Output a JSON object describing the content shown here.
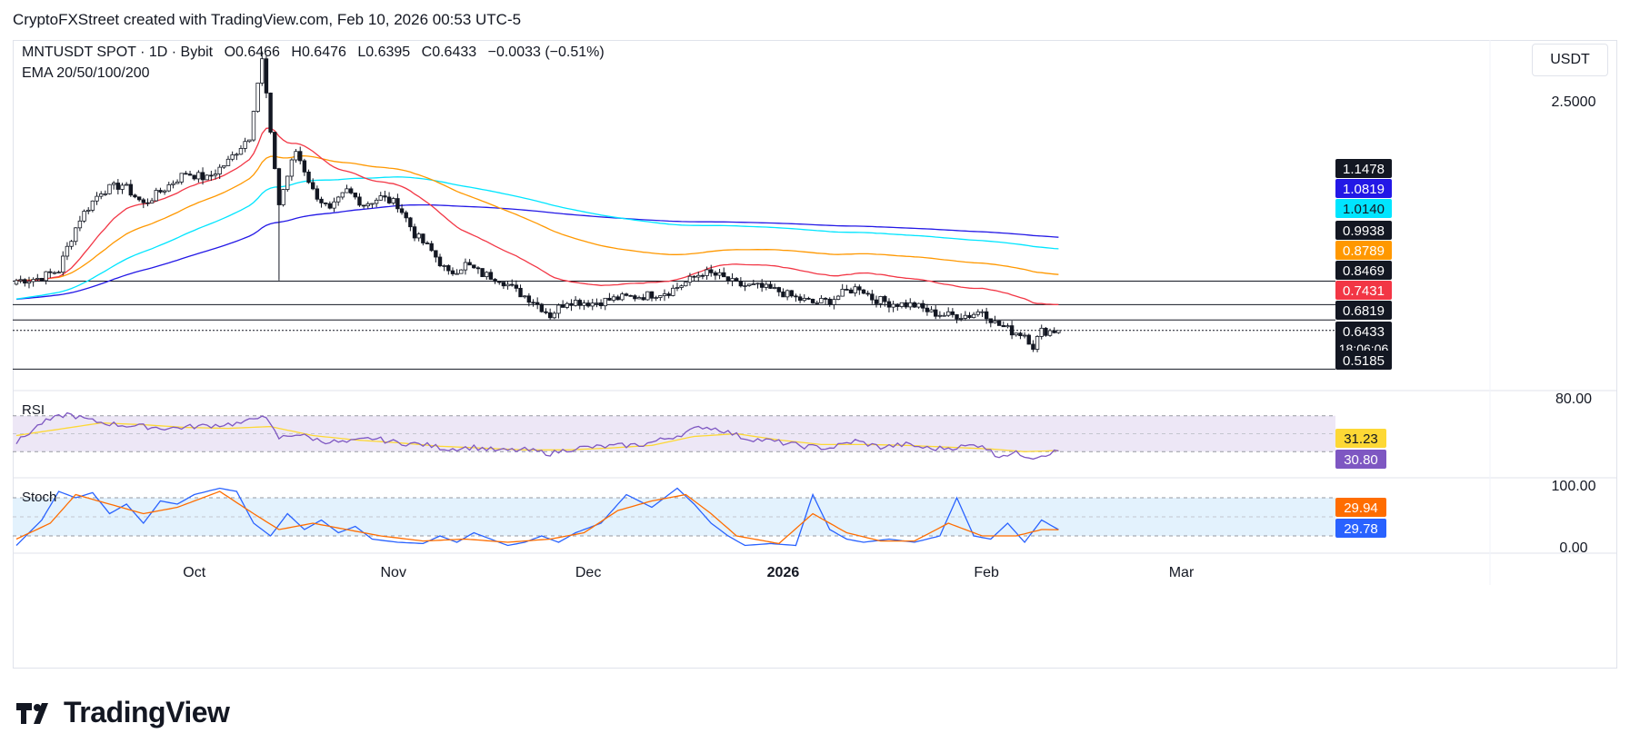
{
  "header": {
    "credit": "CryptoFXStreet created with TradingView.com, Feb 10, 2026 00:53 UTC-5"
  },
  "currency": "USDT",
  "footer": {
    "brand": "TradingView"
  },
  "chart_data": {
    "type": "candlestick",
    "symbol_line": {
      "symbol": "MNTUSDT SPOT · 1D · Bybit",
      "open": "O0.6466",
      "high": "H0.6476",
      "low": "L0.6395",
      "close": "C0.6433",
      "change": "−0.0033 (−0.51%)"
    },
    "indicator_label": "EMA 20/50/100/200",
    "price_axis": {
      "scale": "log",
      "range": [
        0.46,
        3.25
      ],
      "ticks": [
        "2.5000"
      ]
    },
    "time_axis": {
      "labels": [
        "Oct",
        "Nov",
        "Dec",
        "2026",
        "Feb",
        "Mar"
      ]
    },
    "horizontal_levels": [
      0.8469,
      0.7431,
      0.6819,
      0.6433,
      0.5185
    ],
    "price_badges": [
      {
        "value": "1.1478",
        "color": "#131722"
      },
      {
        "value": "1.0819",
        "color": "#2318e6"
      },
      {
        "value": "1.0140",
        "color": "#00e5ff"
      },
      {
        "value": "0.9938",
        "color": "#131722"
      },
      {
        "value": "0.8789",
        "color": "#ff9800"
      },
      {
        "value": "0.8469",
        "color": "#131722"
      },
      {
        "value": "0.7431",
        "color": "#f23645"
      },
      {
        "value": "0.6819",
        "color": "#131722"
      },
      {
        "value": "0.6433",
        "color": "#131722",
        "countdown": "18:06:06"
      },
      {
        "value": "0.5185",
        "color": "#131722"
      }
    ],
    "ema_colors": {
      "ema20": "#f23645",
      "ema50": "#ff9800",
      "ema100": "#00e5ff",
      "ema200": "#2318e6"
    },
    "ema_last": {
      "ema20": 0.7431,
      "ema50": 0.8789,
      "ema100": 1.014,
      "ema200": 1.0819
    },
    "close_anchors": [
      [
        0,
        0.85
      ],
      [
        5,
        0.86
      ],
      [
        10,
        0.9
      ],
      [
        15,
        1.2
      ],
      [
        20,
        1.4
      ],
      [
        25,
        1.45
      ],
      [
        30,
        1.3
      ],
      [
        35,
        1.42
      ],
      [
        40,
        1.55
      ],
      [
        45,
        1.5
      ],
      [
        50,
        1.65
      ],
      [
        55,
        1.9
      ],
      [
        58,
        2.9
      ],
      [
        60,
        1.9
      ],
      [
        62,
        1.3
      ],
      [
        66,
        1.75
      ],
      [
        70,
        1.4
      ],
      [
        74,
        1.25
      ],
      [
        78,
        1.4
      ],
      [
        82,
        1.3
      ],
      [
        86,
        1.35
      ],
      [
        90,
        1.3
      ],
      [
        94,
        1.1
      ],
      [
        98,
        1.0
      ],
      [
        102,
        0.88
      ],
      [
        106,
        0.93
      ],
      [
        110,
        0.88
      ],
      [
        114,
        0.86
      ],
      [
        118,
        0.8
      ],
      [
        122,
        0.76
      ],
      [
        126,
        0.7
      ],
      [
        130,
        0.76
      ],
      [
        136,
        0.75
      ],
      [
        142,
        0.77
      ],
      [
        148,
        0.78
      ],
      [
        154,
        0.8
      ],
      [
        158,
        0.84
      ],
      [
        162,
        0.89
      ],
      [
        166,
        0.87
      ],
      [
        170,
        0.83
      ],
      [
        175,
        0.82
      ],
      [
        180,
        0.8
      ],
      [
        184,
        0.77
      ],
      [
        188,
        0.75
      ],
      [
        192,
        0.76
      ],
      [
        196,
        0.8
      ],
      [
        199,
        0.82
      ],
      [
        202,
        0.77
      ],
      [
        206,
        0.75
      ],
      [
        212,
        0.74
      ],
      [
        216,
        0.71
      ],
      [
        220,
        0.7
      ],
      [
        225,
        0.7
      ],
      [
        228,
        0.72
      ],
      [
        231,
        0.67
      ],
      [
        235,
        0.64
      ],
      [
        238,
        0.63
      ],
      [
        240,
        0.59
      ],
      [
        242,
        0.64
      ],
      [
        246,
        0.643
      ]
    ],
    "rsi": {
      "label": "RSI",
      "band": [
        30,
        70
      ],
      "ticks": [
        "80.00"
      ],
      "last": {
        "rsi": "30.80",
        "ma": "31.23"
      },
      "colors": {
        "rsi": "#7e57c2",
        "ma": "#fdd835",
        "band": "#ede7f6"
      },
      "anchors": [
        [
          0,
          40
        ],
        [
          6,
          62
        ],
        [
          12,
          72
        ],
        [
          18,
          64
        ],
        [
          24,
          60
        ],
        [
          30,
          58
        ],
        [
          36,
          56
        ],
        [
          42,
          58
        ],
        [
          48,
          60
        ],
        [
          54,
          62
        ],
        [
          58,
          72
        ],
        [
          62,
          45
        ],
        [
          66,
          50
        ],
        [
          72,
          42
        ],
        [
          78,
          40
        ],
        [
          84,
          45
        ],
        [
          90,
          40
        ],
        [
          96,
          38
        ],
        [
          102,
          33
        ],
        [
          108,
          35
        ],
        [
          114,
          31
        ],
        [
          120,
          32
        ],
        [
          126,
          28
        ],
        [
          132,
          34
        ],
        [
          140,
          36
        ],
        [
          148,
          38
        ],
        [
          156,
          48
        ],
        [
          162,
          58
        ],
        [
          166,
          55
        ],
        [
          172,
          45
        ],
        [
          178,
          42
        ],
        [
          186,
          36
        ],
        [
          192,
          34
        ],
        [
          198,
          42
        ],
        [
          204,
          35
        ],
        [
          210,
          38
        ],
        [
          216,
          33
        ],
        [
          222,
          35
        ],
        [
          228,
          38
        ],
        [
          231,
          26
        ],
        [
          236,
          28
        ],
        [
          240,
          24
        ],
        [
          246,
          30.8
        ]
      ],
      "ma_anchors": [
        [
          0,
          48
        ],
        [
          10,
          55
        ],
        [
          20,
          62
        ],
        [
          30,
          60
        ],
        [
          40,
          57
        ],
        [
          50,
          56
        ],
        [
          60,
          58
        ],
        [
          70,
          48
        ],
        [
          80,
          43
        ],
        [
          90,
          40
        ],
        [
          100,
          36
        ],
        [
          110,
          34
        ],
        [
          120,
          32
        ],
        [
          130,
          32
        ],
        [
          140,
          34
        ],
        [
          150,
          37
        ],
        [
          160,
          47
        ],
        [
          170,
          50
        ],
        [
          180,
          43
        ],
        [
          190,
          38
        ],
        [
          200,
          38
        ],
        [
          210,
          37
        ],
        [
          220,
          35
        ],
        [
          230,
          33
        ],
        [
          238,
          30
        ],
        [
          246,
          31.23
        ]
      ]
    },
    "stoch": {
      "label": "Stoch",
      "band": [
        20,
        80
      ],
      "ticks": [
        "100.00",
        "0.00"
      ],
      "last": {
        "k": "29.94",
        "d": "29.78"
      },
      "colors": {
        "k": "#2962ff",
        "d": "#ff6d00",
        "band": "#e3f2fd"
      },
      "anchors": [
        [
          0,
          5
        ],
        [
          6,
          45
        ],
        [
          10,
          90
        ],
        [
          14,
          80
        ],
        [
          18,
          88
        ],
        [
          22,
          55
        ],
        [
          26,
          70
        ],
        [
          30,
          40
        ],
        [
          34,
          75
        ],
        [
          38,
          70
        ],
        [
          42,
          85
        ],
        [
          48,
          95
        ],
        [
          52,
          90
        ],
        [
          56,
          40
        ],
        [
          60,
          20
        ],
        [
          64,
          55
        ],
        [
          68,
          30
        ],
        [
          72,
          45
        ],
        [
          76,
          25
        ],
        [
          80,
          35
        ],
        [
          84,
          15
        ],
        [
          90,
          10
        ],
        [
          96,
          8
        ],
        [
          100,
          20
        ],
        [
          104,
          10
        ],
        [
          108,
          25
        ],
        [
          112,
          15
        ],
        [
          116,
          5
        ],
        [
          120,
          10
        ],
        [
          124,
          20
        ],
        [
          128,
          10
        ],
        [
          132,
          25
        ],
        [
          138,
          40
        ],
        [
          144,
          85
        ],
        [
          150,
          65
        ],
        [
          156,
          95
        ],
        [
          160,
          70
        ],
        [
          164,
          40
        ],
        [
          168,
          20
        ],
        [
          172,
          5
        ],
        [
          178,
          8
        ],
        [
          184,
          5
        ],
        [
          188,
          85
        ],
        [
          192,
          30
        ],
        [
          196,
          15
        ],
        [
          200,
          10
        ],
        [
          206,
          15
        ],
        [
          212,
          10
        ],
        [
          218,
          20
        ],
        [
          222,
          80
        ],
        [
          226,
          20
        ],
        [
          230,
          15
        ],
        [
          234,
          40
        ],
        [
          238,
          10
        ],
        [
          242,
          45
        ],
        [
          246,
          29.94
        ]
      ],
      "d_anchors": [
        [
          0,
          15
        ],
        [
          8,
          40
        ],
        [
          14,
          85
        ],
        [
          22,
          70
        ],
        [
          30,
          55
        ],
        [
          38,
          65
        ],
        [
          48,
          90
        ],
        [
          56,
          55
        ],
        [
          62,
          30
        ],
        [
          70,
          40
        ],
        [
          78,
          30
        ],
        [
          86,
          20
        ],
        [
          96,
          12
        ],
        [
          106,
          15
        ],
        [
          116,
          10
        ],
        [
          126,
          15
        ],
        [
          134,
          25
        ],
        [
          142,
          60
        ],
        [
          150,
          75
        ],
        [
          158,
          85
        ],
        [
          164,
          55
        ],
        [
          170,
          20
        ],
        [
          180,
          8
        ],
        [
          188,
          55
        ],
        [
          196,
          25
        ],
        [
          204,
          12
        ],
        [
          212,
          12
        ],
        [
          220,
          40
        ],
        [
          228,
          20
        ],
        [
          236,
          20
        ],
        [
          242,
          30
        ],
        [
          246,
          29.78
        ]
      ]
    }
  }
}
